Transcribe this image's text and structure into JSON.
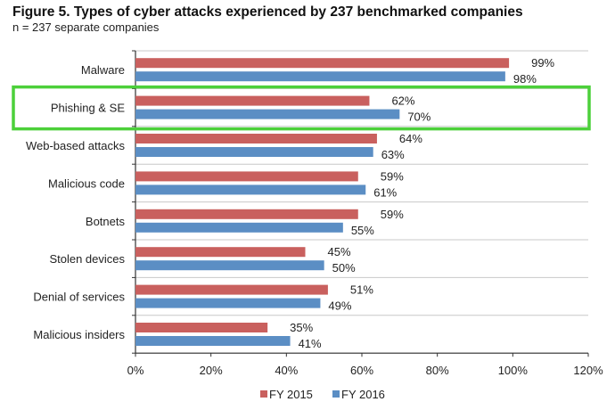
{
  "chart_data": {
    "type": "bar",
    "orientation": "horizontal",
    "title": "Figure 5. Types of cyber attacks experienced by 237 benchmarked companies",
    "subtitle": "n = 237 separate companies",
    "categories": [
      "Malware",
      "Phishing & SE",
      "Web-based attacks",
      "Malicious code",
      "Botnets",
      "Stolen devices",
      "Denial of services",
      "Malicious insiders"
    ],
    "series": [
      {
        "name": "FY 2015",
        "color": "#c9605e",
        "values": [
          99,
          62,
          64,
          59,
          59,
          45,
          51,
          35
        ]
      },
      {
        "name": "FY 2016",
        "color": "#5b8ec4",
        "values": [
          98,
          70,
          63,
          61,
          55,
          50,
          49,
          41
        ]
      }
    ],
    "xlim": [
      0,
      120
    ],
    "xticks": [
      "0%",
      "20%",
      "40%",
      "60%",
      "80%",
      "100%",
      "120%"
    ],
    "value_suffix": "%",
    "grid": "horizontal category separators",
    "legend": "bottom",
    "highlight": {
      "category": "Phishing & SE",
      "color": "#4cd03a"
    }
  }
}
